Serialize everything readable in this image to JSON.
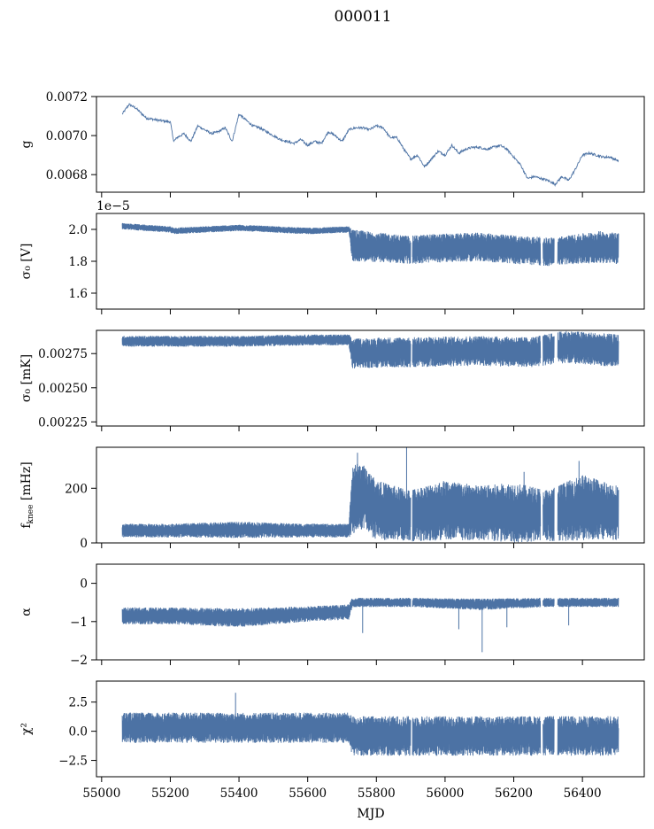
{
  "figure": {
    "title": "000011",
    "xlabel": "MJD",
    "series_color": "#4c72a4"
  },
  "chart_data": [
    {
      "type": "line",
      "ylabel": "g",
      "xlim": [
        54985,
        56580
      ],
      "ylim": [
        0.00671,
        0.0072
      ],
      "yticks": [
        0.0068,
        0.007,
        0.0072
      ],
      "ytick_labels": [
        "0.0068",
        "0.0070",
        "0.0072"
      ],
      "xticks": [
        55000,
        55200,
        55400,
        55600,
        55800,
        56000,
        56200,
        56400
      ],
      "xtick_labels": [],
      "noise": 6e-06,
      "x": [
        55060,
        55080,
        55100,
        55130,
        55160,
        55200,
        55210,
        55220,
        55240,
        55260,
        55280,
        55300,
        55320,
        55340,
        55360,
        55380,
        55400,
        55420,
        55440,
        55460,
        55480,
        55500,
        55520,
        55540,
        55560,
        55580,
        55600,
        55620,
        55640,
        55660,
        55680,
        55700,
        55720,
        55740,
        55760,
        55780,
        55800,
        55820,
        55840,
        55860,
        55880,
        55900,
        55920,
        55940,
        55960,
        55980,
        56000,
        56020,
        56040,
        56060,
        56080,
        56100,
        56120,
        56140,
        56160,
        56180,
        56200,
        56220,
        56240,
        56260,
        56280,
        56300,
        56320,
        56340,
        56360,
        56380,
        56400,
        56420,
        56440,
        56460,
        56480,
        56505
      ],
      "y": [
        0.00711,
        0.00716,
        0.00714,
        0.00709,
        0.00708,
        0.00707,
        0.00697,
        0.00699,
        0.00701,
        0.00697,
        0.00705,
        0.00703,
        0.00701,
        0.00702,
        0.00704,
        0.00697,
        0.00711,
        0.00708,
        0.00705,
        0.00704,
        0.00702,
        0.007,
        0.00698,
        0.00697,
        0.00696,
        0.00698,
        0.00695,
        0.00697,
        0.00696,
        0.00702,
        0.007,
        0.00697,
        0.00703,
        0.00704,
        0.00704,
        0.00703,
        0.00705,
        0.00704,
        0.00699,
        0.00699,
        0.00693,
        0.00688,
        0.0069,
        0.00684,
        0.00688,
        0.00692,
        0.0069,
        0.00695,
        0.00691,
        0.00693,
        0.00694,
        0.00694,
        0.00693,
        0.00694,
        0.00695,
        0.00693,
        0.00689,
        0.00685,
        0.00678,
        0.00679,
        0.00678,
        0.00677,
        0.00675,
        0.00679,
        0.00677,
        0.00683,
        0.0069,
        0.00691,
        0.0069,
        0.00689,
        0.00689,
        0.00687
      ]
    },
    {
      "type": "line",
      "ylabel": "σ₀ [V]",
      "offset_text": "1e−5",
      "xlim": [
        54985,
        56580
      ],
      "ylim": [
        1.5,
        2.1
      ],
      "yticks": [
        1.6,
        1.8,
        2.0
      ],
      "ytick_labels": [
        "1.6",
        "1.8",
        "2.0"
      ],
      "xticks": [
        55000,
        55200,
        55400,
        55600,
        55800,
        56000,
        56200,
        56400
      ],
      "xtick_labels": [],
      "x": [
        55060,
        55200,
        55210,
        55400,
        55600,
        55720,
        55730,
        55850,
        55900,
        55950,
        56100,
        56220,
        56300,
        56350,
        56450,
        56505
      ],
      "mid": [
        2.02,
        2.0,
        1.99,
        2.01,
        1.99,
        2.0,
        1.9,
        1.88,
        1.87,
        1.88,
        1.89,
        1.87,
        1.86,
        1.87,
        1.89,
        1.88
      ],
      "amp": [
        0.02,
        0.02,
        0.02,
        0.02,
        0.02,
        0.02,
        0.1,
        0.09,
        0.09,
        0.09,
        0.09,
        0.09,
        0.09,
        0.09,
        0.1,
        0.1
      ],
      "gaps": [
        [
          55900,
          55905
        ],
        [
          56278,
          56285
        ],
        [
          56318,
          56328
        ]
      ]
    },
    {
      "type": "line",
      "ylabel": "σ₀ [mK]",
      "xlim": [
        54985,
        56580
      ],
      "ylim": [
        0.00222,
        0.00292
      ],
      "yticks": [
        0.00225,
        0.0025,
        0.00275
      ],
      "ytick_labels": [
        "0.00225",
        "0.00250",
        "0.00275"
      ],
      "xticks": [
        55000,
        55200,
        55400,
        55600,
        55800,
        56000,
        56200,
        56400
      ],
      "xtick_labels": [],
      "x": [
        55060,
        55200,
        55400,
        55600,
        55720,
        55730,
        55850,
        55900,
        56100,
        56250,
        56350,
        56505
      ],
      "mid": [
        0.00284,
        0.00284,
        0.00284,
        0.00285,
        0.00285,
        0.00275,
        0.00276,
        0.00276,
        0.00277,
        0.00276,
        0.0028,
        0.00277
      ],
      "amp": [
        4e-05,
        4e-05,
        4e-05,
        4e-05,
        4e-05,
        0.00011,
        0.00011,
        0.00011,
        0.00011,
        0.00011,
        0.00012,
        0.00012
      ],
      "gaps": [
        [
          55900,
          55905
        ],
        [
          56278,
          56285
        ],
        [
          56318,
          56328
        ]
      ]
    },
    {
      "type": "line",
      "ylabel": "f_knee [mHz]",
      "xlim": [
        54985,
        56580
      ],
      "ylim": [
        0,
        350
      ],
      "yticks": [
        0,
        200
      ],
      "ytick_labels": [
        "0",
        "200"
      ],
      "xticks": [
        55000,
        55200,
        55400,
        55600,
        55800,
        56000,
        56200,
        56400
      ],
      "xtick_labels": [],
      "x": [
        55060,
        55200,
        55400,
        55600,
        55720,
        55730,
        55760,
        55800,
        55850,
        55900,
        56000,
        56100,
        56200,
        56300,
        56400,
        56505
      ],
      "mid": [
        45,
        45,
        48,
        45,
        45,
        160,
        170,
        120,
        110,
        100,
        120,
        110,
        110,
        100,
        130,
        110
      ],
      "amp": [
        25,
        25,
        30,
        25,
        25,
        130,
        120,
        110,
        100,
        95,
        110,
        100,
        110,
        95,
        120,
        100
      ],
      "spikes": [
        [
          55888,
          350
        ],
        [
          55745,
          330
        ],
        [
          56390,
          300
        ],
        [
          56230,
          260
        ]
      ],
      "gaps": [
        [
          55900,
          55905
        ],
        [
          56278,
          56285
        ],
        [
          56318,
          56328
        ]
      ]
    },
    {
      "type": "line",
      "ylabel": "α",
      "xlim": [
        54985,
        56580
      ],
      "ylim": [
        -2,
        0.5
      ],
      "yticks": [
        -2,
        -1,
        0
      ],
      "ytick_labels": [
        "−2",
        "−1",
        "0"
      ],
      "xticks": [
        55000,
        55200,
        55400,
        55600,
        55800,
        56000,
        56200,
        56400
      ],
      "xtick_labels": [],
      "x": [
        55060,
        55200,
        55400,
        55600,
        55720,
        55730,
        55900,
        56100,
        56300,
        56505
      ],
      "mid": [
        -0.85,
        -0.85,
        -0.9,
        -0.8,
        -0.75,
        -0.5,
        -0.5,
        -0.55,
        -0.5,
        -0.5
      ],
      "amp": [
        0.22,
        0.22,
        0.25,
        0.2,
        0.2,
        0.12,
        0.12,
        0.15,
        0.12,
        0.12
      ],
      "spikes": [
        [
          56108,
          -1.8
        ],
        [
          55760,
          -1.3
        ],
        [
          56040,
          -1.2
        ],
        [
          56180,
          -1.15
        ],
        [
          56360,
          -1.1
        ]
      ],
      "gaps": [
        [
          55900,
          55905
        ],
        [
          56278,
          56285
        ],
        [
          56318,
          56328
        ]
      ]
    },
    {
      "type": "line",
      "ylabel": "χ²",
      "xlim": [
        54985,
        56580
      ],
      "ylim": [
        -3.9,
        4.3
      ],
      "yticks": [
        -2.5,
        0.0,
        2.5
      ],
      "ytick_labels": [
        "−2.5",
        "0.0",
        "2.5"
      ],
      "xticks": [
        55000,
        55200,
        55400,
        55600,
        55800,
        56000,
        56200,
        56400
      ],
      "xtick_labels": [
        "55000",
        "55200",
        "55400",
        "55600",
        "55800",
        "56000",
        "56200",
        "56400"
      ],
      "x": [
        55060,
        55720,
        55730,
        56505
      ],
      "mid": [
        0.3,
        0.3,
        -0.4,
        -0.4
      ],
      "amp": [
        1.3,
        1.3,
        1.7,
        1.7
      ],
      "spikes": [
        [
          55390,
          3.3
        ]
      ],
      "gaps": [
        [
          55900,
          55905
        ],
        [
          56278,
          56285
        ],
        [
          56318,
          56328
        ]
      ]
    }
  ]
}
